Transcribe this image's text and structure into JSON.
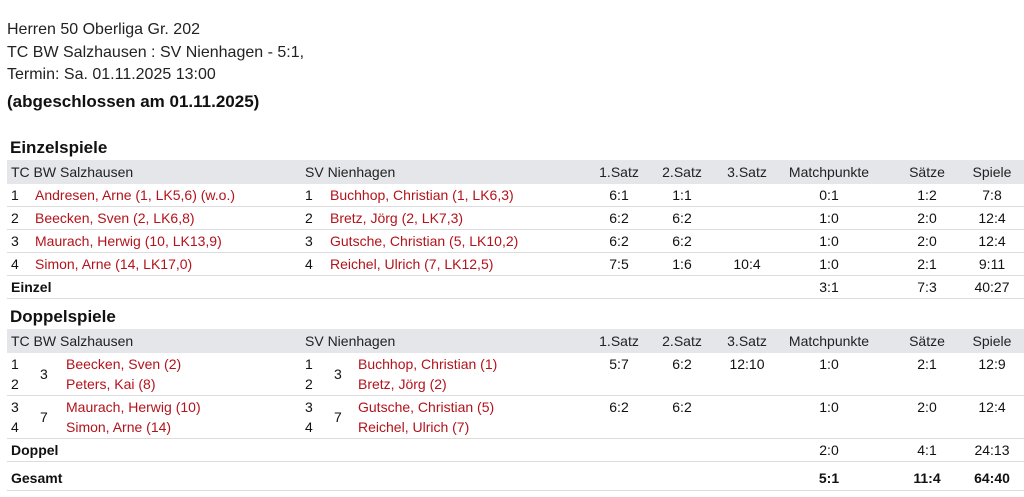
{
  "header": {
    "line1": "Herren 50 Oberliga Gr. 202",
    "line2": "TC BW Salzhausen : SV Nienhagen - 5:1,",
    "line3": "Termin: Sa. 01.11.2025 13:00",
    "status": "(abgeschlossen am 01.11.2025)"
  },
  "columns": {
    "home": "TC BW Salzhausen",
    "away": "SV Nienhagen",
    "set1": "1.Satz",
    "set2": "2.Satz",
    "set3": "3.Satz",
    "match_points": "Matchpunkte",
    "sets": "Sätze",
    "games": "Spiele"
  },
  "singles": {
    "title": "Einzelspiele",
    "rows": [
      {
        "hn": "1",
        "home": "Andresen, Arne (1, LK5,6) (w.o.)",
        "an": "1",
        "away": "Buchhop, Christian (1, LK6,3)",
        "s1": "6:1",
        "s2": "1:1",
        "s3": "",
        "mp": "0:1",
        "sets": "1:2",
        "games": "7:8"
      },
      {
        "hn": "2",
        "home": "Beecken, Sven (2, LK6,8)",
        "an": "2",
        "away": "Bretz, Jörg (2, LK7,3)",
        "s1": "6:2",
        "s2": "6:2",
        "s3": "",
        "mp": "1:0",
        "sets": "2:0",
        "games": "12:4"
      },
      {
        "hn": "3",
        "home": "Maurach, Herwig (10, LK13,9)",
        "an": "3",
        "away": "Gutsche, Christian (5, LK10,2)",
        "s1": "6:2",
        "s2": "6:2",
        "s3": "",
        "mp": "1:0",
        "sets": "2:0",
        "games": "12:4"
      },
      {
        "hn": "4",
        "home": "Simon, Arne (14, LK17,0)",
        "an": "4",
        "away": "Reichel, Ulrich (7, LK12,5)",
        "s1": "7:5",
        "s2": "1:6",
        "s3": "10:4",
        "mp": "1:0",
        "sets": "2:1",
        "games": "9:11"
      }
    ],
    "total": {
      "label": "Einzel",
      "mp": "3:1",
      "sets": "7:3",
      "games": "40:27"
    }
  },
  "doubles": {
    "title": "Doppelspiele",
    "rows": [
      {
        "hn1": "1",
        "hn2": "2",
        "hrank": "3",
        "home1": "Beecken, Sven (2)",
        "home2": "Peters, Kai (8)",
        "an1": "1",
        "an2": "2",
        "arank": "3",
        "away1": "Buchhop, Christian (1)",
        "away2": "Bretz, Jörg (2)",
        "s1": "5:7",
        "s2": "6:2",
        "s3": "12:10",
        "mp": "1:0",
        "sets": "2:1",
        "games": "12:9"
      },
      {
        "hn1": "3",
        "hn2": "4",
        "hrank": "7",
        "home1": "Maurach, Herwig (10)",
        "home2": "Simon, Arne (14)",
        "an1": "3",
        "an2": "4",
        "arank": "7",
        "away1": "Gutsche, Christian (5)",
        "away2": "Reichel, Ulrich (7)",
        "s1": "6:2",
        "s2": "6:2",
        "s3": "",
        "mp": "1:0",
        "sets": "2:0",
        "games": "12:4"
      }
    ],
    "total": {
      "label": "Doppel",
      "mp": "2:0",
      "sets": "4:1",
      "games": "24:13"
    }
  },
  "grand_total": {
    "label": "Gesamt",
    "mp": "5:1",
    "sets": "11:4",
    "games": "64:40"
  },
  "colors": {
    "link": "#b3131b",
    "header_bg": "#e4e6ea"
  }
}
